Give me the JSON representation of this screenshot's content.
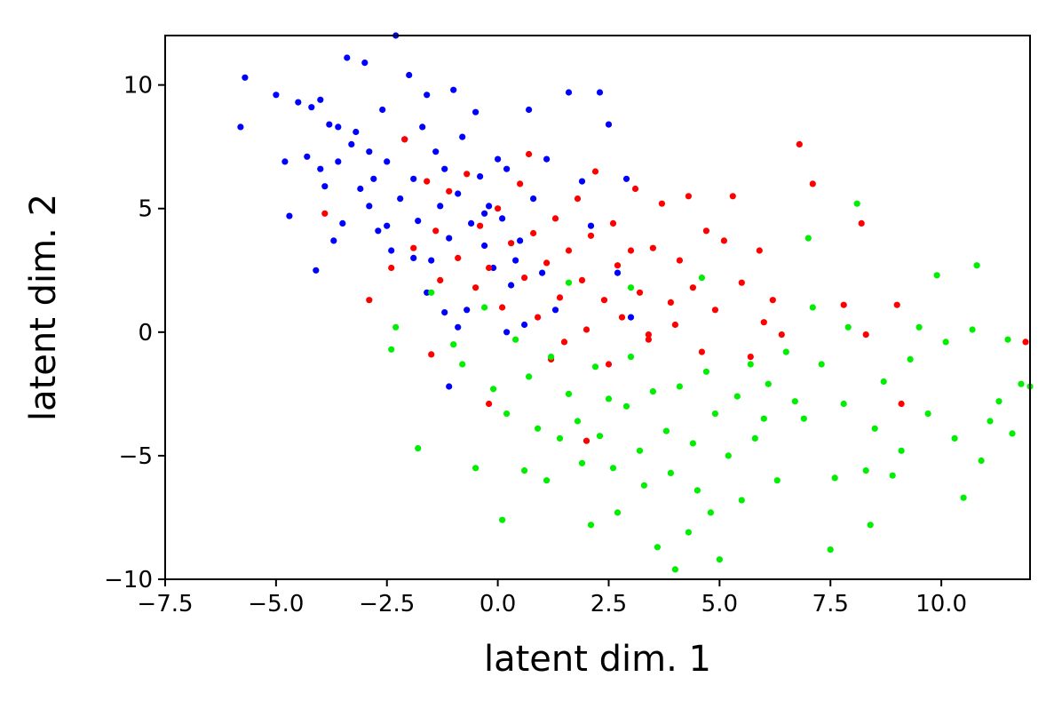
{
  "chart_data": {
    "type": "scatter",
    "title": "",
    "xlabel": "latent dim. 1",
    "ylabel": "latent dim. 2",
    "xlim": [
      -7.5,
      12
    ],
    "ylim": [
      -10,
      12
    ],
    "xticks": [
      -7.5,
      -5.0,
      -2.5,
      0.0,
      2.5,
      5.0,
      7.5,
      10.0
    ],
    "xtick_labels": [
      "−7.5",
      "−5.0",
      "−2.5",
      "0.0",
      "2.5",
      "5.0",
      "7.5",
      "10.0"
    ],
    "yticks": [
      -10,
      -5,
      0,
      5,
      10
    ],
    "ytick_labels": [
      "−10",
      "−5",
      "0",
      "5",
      "10"
    ],
    "grid": false,
    "legend": "none",
    "series": [
      {
        "color": "#0000ff",
        "points": [
          [
            -5.8,
            8.3
          ],
          [
            -5.7,
            10.3
          ],
          [
            -5.0,
            9.6
          ],
          [
            -4.8,
            6.9
          ],
          [
            -4.7,
            4.7
          ],
          [
            -4.5,
            9.3
          ],
          [
            -4.3,
            7.1
          ],
          [
            -4.2,
            9.1
          ],
          [
            -4.1,
            2.5
          ],
          [
            -4.0,
            9.4
          ],
          [
            -4.0,
            6.6
          ],
          [
            -3.9,
            5.9
          ],
          [
            -3.8,
            8.4
          ],
          [
            -3.7,
            3.7
          ],
          [
            -3.6,
            6.9
          ],
          [
            -3.5,
            4.4
          ],
          [
            -3.4,
            11.1
          ],
          [
            -3.3,
            7.6
          ],
          [
            -3.2,
            8.1
          ],
          [
            -3.1,
            5.8
          ],
          [
            -3.0,
            10.9
          ],
          [
            -2.9,
            7.3
          ],
          [
            -2.8,
            6.2
          ],
          [
            -2.7,
            4.1
          ],
          [
            -2.6,
            9.0
          ],
          [
            -2.5,
            6.9
          ],
          [
            -2.4,
            3.3
          ],
          [
            -2.3,
            12.0
          ],
          [
            -2.2,
            5.4
          ],
          [
            -2.1,
            7.8
          ],
          [
            -2.0,
            10.4
          ],
          [
            -1.9,
            6.2
          ],
          [
            -1.8,
            4.5
          ],
          [
            -1.7,
            8.3
          ],
          [
            -1.6,
            9.6
          ],
          [
            -1.5,
            2.9
          ],
          [
            -1.4,
            7.3
          ],
          [
            -1.3,
            5.1
          ],
          [
            -1.2,
            6.6
          ],
          [
            -1.1,
            3.8
          ],
          [
            -1.0,
            9.8
          ],
          [
            -0.9,
            5.6
          ],
          [
            -0.8,
            7.9
          ],
          [
            -0.7,
            0.9
          ],
          [
            -0.6,
            4.4
          ],
          [
            -0.5,
            8.9
          ],
          [
            -0.4,
            6.3
          ],
          [
            -0.3,
            3.5
          ],
          [
            -0.2,
            5.1
          ],
          [
            -0.1,
            2.6
          ],
          [
            0.0,
            7.0
          ],
          [
            0.1,
            4.6
          ],
          [
            0.2,
            6.6
          ],
          [
            0.3,
            1.9
          ],
          [
            0.5,
            3.7
          ],
          [
            0.6,
            0.3
          ],
          [
            0.7,
            9.0
          ],
          [
            0.8,
            5.4
          ],
          [
            1.0,
            2.4
          ],
          [
            1.1,
            7.0
          ],
          [
            1.3,
            0.9
          ],
          [
            1.6,
            9.7
          ],
          [
            1.9,
            6.1
          ],
          [
            2.1,
            4.3
          ],
          [
            2.3,
            9.7
          ],
          [
            2.5,
            8.4
          ],
          [
            2.7,
            2.4
          ],
          [
            2.9,
            6.2
          ],
          [
            3.0,
            0.6
          ],
          [
            -1.6,
            1.6
          ],
          [
            -1.2,
            0.8
          ],
          [
            -0.9,
            0.2
          ],
          [
            -1.1,
            -2.2
          ],
          [
            0.2,
            0.0
          ],
          [
            -2.9,
            5.1
          ],
          [
            -3.6,
            8.3
          ],
          [
            -2.5,
            4.3
          ],
          [
            -1.9,
            3.0
          ],
          [
            -0.3,
            4.8
          ],
          [
            0.4,
            2.9
          ]
        ]
      },
      {
        "color": "#ff0000",
        "points": [
          [
            -3.9,
            4.8
          ],
          [
            -2.9,
            1.3
          ],
          [
            -2.4,
            2.6
          ],
          [
            -2.1,
            7.8
          ],
          [
            -1.9,
            3.4
          ],
          [
            -1.6,
            6.1
          ],
          [
            -1.4,
            4.1
          ],
          [
            -1.3,
            2.1
          ],
          [
            -1.1,
            5.7
          ],
          [
            -0.9,
            3.0
          ],
          [
            -0.7,
            6.4
          ],
          [
            -0.5,
            1.8
          ],
          [
            -0.4,
            4.3
          ],
          [
            -0.2,
            2.6
          ],
          [
            0.0,
            5.0
          ],
          [
            0.1,
            1.0
          ],
          [
            0.3,
            3.6
          ],
          [
            0.5,
            6.0
          ],
          [
            0.6,
            2.2
          ],
          [
            0.8,
            4.0
          ],
          [
            0.9,
            0.6
          ],
          [
            1.1,
            2.8
          ],
          [
            1.3,
            4.6
          ],
          [
            1.4,
            1.4
          ],
          [
            1.5,
            -0.4
          ],
          [
            1.6,
            3.3
          ],
          [
            1.8,
            5.4
          ],
          [
            1.9,
            2.1
          ],
          [
            2.0,
            0.1
          ],
          [
            2.1,
            3.9
          ],
          [
            2.2,
            6.5
          ],
          [
            2.4,
            1.3
          ],
          [
            2.5,
            -1.3
          ],
          [
            2.6,
            4.4
          ],
          [
            2.7,
            2.7
          ],
          [
            2.8,
            0.6
          ],
          [
            3.0,
            3.3
          ],
          [
            3.1,
            5.8
          ],
          [
            3.2,
            1.6
          ],
          [
            3.4,
            -0.3
          ],
          [
            3.5,
            3.4
          ],
          [
            3.7,
            5.2
          ],
          [
            3.9,
            1.2
          ],
          [
            4.0,
            0.3
          ],
          [
            4.1,
            2.9
          ],
          [
            4.3,
            5.5
          ],
          [
            4.4,
            1.8
          ],
          [
            4.6,
            -0.8
          ],
          [
            4.7,
            4.1
          ],
          [
            4.9,
            0.9
          ],
          [
            5.1,
            3.7
          ],
          [
            5.3,
            5.5
          ],
          [
            5.5,
            2.0
          ],
          [
            5.7,
            -1.0
          ],
          [
            5.9,
            3.3
          ],
          [
            6.0,
            0.4
          ],
          [
            6.2,
            1.3
          ],
          [
            6.4,
            -0.1
          ],
          [
            6.8,
            7.6
          ],
          [
            7.1,
            6.0
          ],
          [
            7.8,
            1.1
          ],
          [
            8.2,
            4.4
          ],
          [
            8.3,
            -0.1
          ],
          [
            9.0,
            1.1
          ],
          [
            9.1,
            -2.9
          ],
          [
            11.9,
            -0.4
          ],
          [
            -1.5,
            -0.9
          ],
          [
            -0.2,
            -2.9
          ],
          [
            1.2,
            -1.1
          ],
          [
            2.0,
            -4.4
          ],
          [
            3.4,
            -0.1
          ],
          [
            0.7,
            7.2
          ]
        ]
      },
      {
        "color": "#00ee00",
        "points": [
          [
            -2.4,
            -0.7
          ],
          [
            -2.3,
            0.2
          ],
          [
            -1.8,
            -4.7
          ],
          [
            -1.5,
            1.6
          ],
          [
            -1.0,
            -0.5
          ],
          [
            -0.8,
            -1.3
          ],
          [
            -0.5,
            -5.5
          ],
          [
            -0.3,
            1.0
          ],
          [
            -0.1,
            -2.3
          ],
          [
            0.1,
            -7.6
          ],
          [
            0.2,
            -3.3
          ],
          [
            0.4,
            -0.3
          ],
          [
            0.6,
            -5.6
          ],
          [
            0.7,
            -1.8
          ],
          [
            0.9,
            -3.9
          ],
          [
            1.1,
            -6.0
          ],
          [
            1.2,
            -1.0
          ],
          [
            1.4,
            -4.3
          ],
          [
            1.6,
            -2.5
          ],
          [
            1.8,
            -3.6
          ],
          [
            1.9,
            -5.3
          ],
          [
            2.1,
            -7.8
          ],
          [
            2.2,
            -1.4
          ],
          [
            2.3,
            -4.2
          ],
          [
            2.5,
            -2.7
          ],
          [
            2.6,
            -5.5
          ],
          [
            2.7,
            -7.3
          ],
          [
            2.9,
            -3.0
          ],
          [
            3.0,
            -1.0
          ],
          [
            3.2,
            -4.8
          ],
          [
            3.3,
            -6.2
          ],
          [
            3.5,
            -2.4
          ],
          [
            3.6,
            -8.7
          ],
          [
            3.8,
            -4.0
          ],
          [
            3.9,
            -5.7
          ],
          [
            4.0,
            -9.6
          ],
          [
            4.1,
            -2.2
          ],
          [
            4.3,
            -8.1
          ],
          [
            4.4,
            -4.5
          ],
          [
            4.5,
            -6.4
          ],
          [
            4.7,
            -1.6
          ],
          [
            4.8,
            -7.3
          ],
          [
            4.9,
            -3.3
          ],
          [
            5.0,
            -9.2
          ],
          [
            5.2,
            -5.0
          ],
          [
            5.4,
            -2.6
          ],
          [
            5.5,
            -6.8
          ],
          [
            5.7,
            -1.3
          ],
          [
            5.8,
            -4.3
          ],
          [
            6.0,
            -3.5
          ],
          [
            6.1,
            -2.1
          ],
          [
            6.3,
            -6.0
          ],
          [
            6.5,
            -0.8
          ],
          [
            6.7,
            -2.8
          ],
          [
            6.9,
            -3.5
          ],
          [
            7.0,
            3.8
          ],
          [
            7.1,
            1.0
          ],
          [
            7.3,
            -1.3
          ],
          [
            7.5,
            -8.8
          ],
          [
            7.6,
            -5.9
          ],
          [
            7.8,
            -2.9
          ],
          [
            7.9,
            0.2
          ],
          [
            8.1,
            5.2
          ],
          [
            8.3,
            -5.6
          ],
          [
            8.4,
            -7.8
          ],
          [
            8.5,
            -3.9
          ],
          [
            8.7,
            -2.0
          ],
          [
            8.9,
            -5.8
          ],
          [
            9.1,
            -4.8
          ],
          [
            9.3,
            -1.1
          ],
          [
            9.5,
            0.2
          ],
          [
            9.7,
            -3.3
          ],
          [
            9.9,
            2.3
          ],
          [
            10.1,
            -0.4
          ],
          [
            10.3,
            -4.3
          ],
          [
            10.5,
            -6.7
          ],
          [
            10.7,
            0.1
          ],
          [
            10.8,
            2.7
          ],
          [
            10.9,
            -5.2
          ],
          [
            11.1,
            -3.6
          ],
          [
            11.3,
            -2.8
          ],
          [
            11.5,
            -0.3
          ],
          [
            11.6,
            -4.1
          ],
          [
            11.8,
            -2.1
          ],
          [
            12.0,
            -2.2
          ],
          [
            4.6,
            2.2
          ],
          [
            3.0,
            1.8
          ],
          [
            1.6,
            2.0
          ]
        ]
      }
    ]
  }
}
